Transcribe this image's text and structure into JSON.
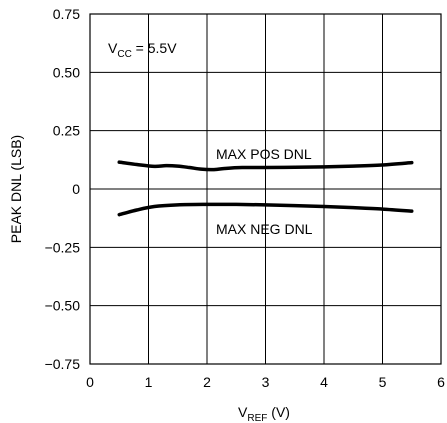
{
  "chart_data": {
    "type": "line",
    "xlabel_main": "V",
    "xlabel_sub": "REF",
    "xlabel_suffix": " (V)",
    "ylabel": "PEAK DNL (LSB)",
    "xlim": [
      0,
      6
    ],
    "ylim": [
      -0.75,
      0.75
    ],
    "x_ticks": [
      0,
      1,
      2,
      3,
      4,
      5,
      6
    ],
    "x_tick_labels": [
      "0",
      "1",
      "2",
      "3",
      "4",
      "5",
      "6"
    ],
    "y_ticks": [
      0.75,
      0.5,
      0.25,
      0,
      -0.25,
      -0.5,
      -0.75
    ],
    "y_tick_labels": [
      "0.75",
      "0.50",
      "0.25",
      "0",
      "−0.25",
      "−0.50",
      "−0.75"
    ],
    "grid": true,
    "annotations": {
      "vcc_main": "V",
      "vcc_sub": "CC",
      "vcc_suffix": " = 5.5V"
    },
    "series": [
      {
        "name": "MAX POS DNL",
        "x": [
          0.5,
          0.8,
          1.1,
          1.3,
          1.5,
          1.7,
          1.9,
          2.1,
          2.3,
          2.6,
          3.0,
          3.5,
          4.0,
          4.5,
          5.0,
          5.5
        ],
        "y": [
          0.115,
          0.105,
          0.097,
          0.1,
          0.098,
          0.092,
          0.085,
          0.083,
          0.088,
          0.092,
          0.092,
          0.093,
          0.095,
          0.098,
          0.103,
          0.113
        ]
      },
      {
        "name": "MAX NEG DNL",
        "x": [
          0.5,
          0.8,
          1.1,
          1.5,
          2.0,
          2.5,
          3.0,
          3.5,
          4.0,
          4.5,
          5.0,
          5.5
        ],
        "y": [
          -0.11,
          -0.09,
          -0.075,
          -0.068,
          -0.066,
          -0.066,
          -0.068,
          -0.071,
          -0.075,
          -0.08,
          -0.086,
          -0.095
        ]
      }
    ]
  }
}
